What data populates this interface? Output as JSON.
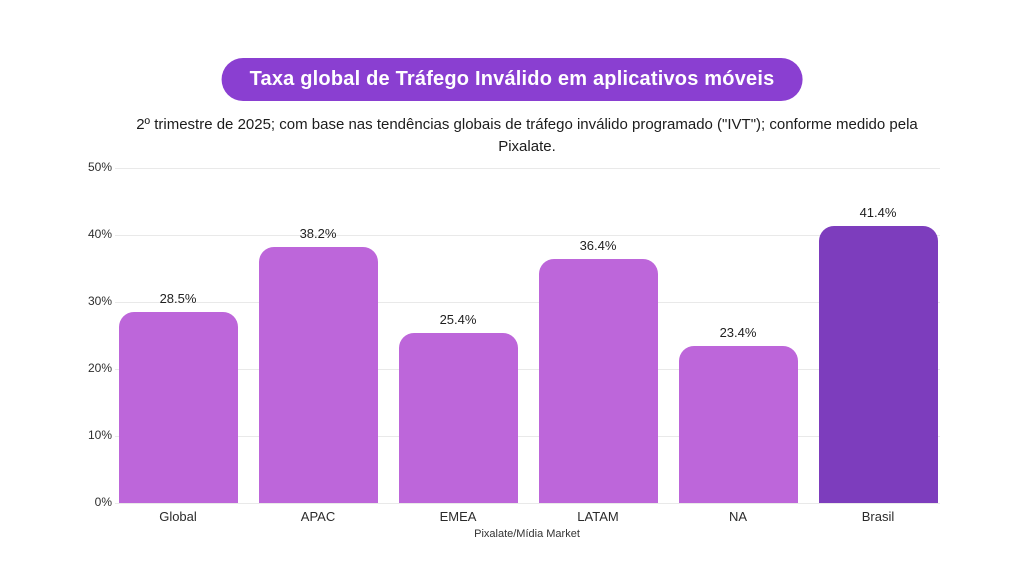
{
  "header": {
    "title": "Taxa global de Tráfego Inválido em aplicativos móveis",
    "subtitle": "2º trimestre de 2025; com base nas tendências globais de tráfego inválido programado (\"IVT\"); conforme medido pela Pixalate.",
    "pill_color": "#8a3fd1",
    "title_text_color": "#ffffff"
  },
  "chart_data": {
    "type": "bar",
    "title": "Taxa global de Tráfego Inválido em aplicativos móveis",
    "categories": [
      "Global",
      "APAC",
      "EMEA",
      "LATAM",
      "NA",
      "Brasil"
    ],
    "values": [
      28.5,
      38.2,
      25.4,
      36.4,
      23.4,
      41.4
    ],
    "value_labels": [
      "28.5%",
      "38.2%",
      "25.4%",
      "36.4%",
      "23.4%",
      "41.4%"
    ],
    "y_ticks": [
      "0%",
      "10%",
      "20%",
      "30%",
      "40%",
      "50%"
    ],
    "ylim": [
      0,
      50
    ],
    "y_tick_step": 10,
    "grid": true,
    "legend": false,
    "xlabel": "",
    "ylabel": "",
    "bar_color": "#bd66da",
    "highlight_color": "#7d3dbd",
    "highlight_index": 5,
    "gridline_color": "#e9e9e9"
  },
  "footer": {
    "source": "Pixalate/Mídia Market"
  }
}
